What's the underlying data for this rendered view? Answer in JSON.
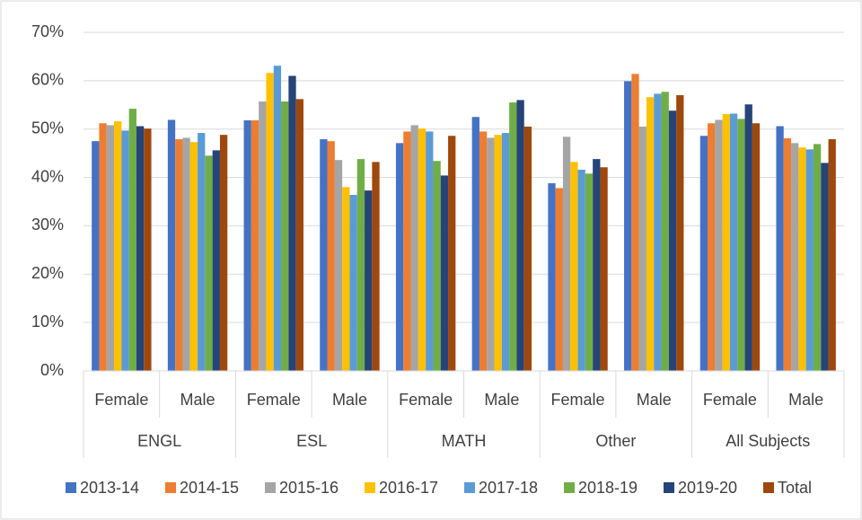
{
  "chart_data": {
    "type": "bar",
    "categories": [
      "Female",
      "Male",
      "Female",
      "Male",
      "Female",
      "Male",
      "Female",
      "Male",
      "Female",
      "Male"
    ],
    "groups": [
      "ENGL",
      "ESL",
      "MATH",
      "Other",
      "All Subjects"
    ],
    "series": [
      {
        "name": "2013-14",
        "color": "#4472c4",
        "values": [
          47.5,
          51.9,
          51.8,
          47.9,
          47.1,
          52.5,
          38.8,
          59.9,
          48.6,
          50.6
        ]
      },
      {
        "name": "2014-15",
        "color": "#ed7d31",
        "values": [
          51.2,
          47.9,
          51.8,
          47.5,
          49.5,
          49.5,
          37.8,
          61.4,
          51.2,
          48.1
        ]
      },
      {
        "name": "2015-16",
        "color": "#a5a5a5",
        "values": [
          50.8,
          48.2,
          55.7,
          43.6,
          50.8,
          48.2,
          48.4,
          50.5,
          51.9,
          47.1
        ]
      },
      {
        "name": "2016-17",
        "color": "#ffc000",
        "values": [
          51.6,
          47.3,
          61.6,
          38.0,
          50.1,
          48.8,
          43.2,
          56.6,
          53.1,
          46.2
        ]
      },
      {
        "name": "2017-18",
        "color": "#5b9bd5",
        "values": [
          49.7,
          49.2,
          63.1,
          36.4,
          49.5,
          49.2,
          41.6,
          57.3,
          53.2,
          45.8
        ]
      },
      {
        "name": "2018-19",
        "color": "#70ad47",
        "values": [
          54.2,
          44.5,
          55.7,
          43.8,
          43.4,
          55.5,
          40.8,
          57.7,
          52.1,
          46.9
        ]
      },
      {
        "name": "2019-20",
        "color": "#264478",
        "values": [
          50.6,
          45.6,
          61.0,
          37.3,
          40.4,
          56.0,
          43.8,
          53.8,
          55.1,
          43.0
        ]
      },
      {
        "name": "Total",
        "color": "#9e480e",
        "values": [
          50.1,
          48.8,
          56.2,
          43.2,
          48.6,
          50.5,
          42.1,
          57.0,
          51.2,
          47.9
        ]
      }
    ],
    "ylim": [
      0,
      70
    ],
    "yticks": [
      {
        "value": 0,
        "label": "0%"
      },
      {
        "value": 10,
        "label": "10%"
      },
      {
        "value": 20,
        "label": "20%"
      },
      {
        "value": 30,
        "label": "30%"
      },
      {
        "value": 40,
        "label": "40%"
      },
      {
        "value": 50,
        "label": "50%"
      },
      {
        "value": 60,
        "label": "60%"
      },
      {
        "value": 70,
        "label": "70%"
      }
    ],
    "grid": true,
    "legend": "bottom"
  }
}
